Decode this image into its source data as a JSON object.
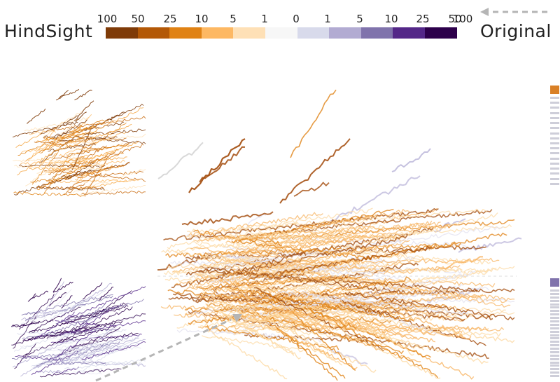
{
  "legend": {
    "left_label": "HindSight",
    "right_label": "Original",
    "ticks": [
      "100",
      "50",
      "25",
      "10",
      "5",
      "1",
      "0",
      "1",
      "5",
      "10",
      "25",
      "50",
      "100"
    ],
    "colors": [
      "#7f3b08",
      "#b35806",
      "#e08214",
      "#fdb863",
      "#fee0b6",
      "#f7f7f7",
      "#d8daeb",
      "#b2abd2",
      "#8073ac",
      "#542788",
      "#2d004b"
    ]
  },
  "palette": {
    "orange_light": "#fcd9a4",
    "orange_mid": "#f7b463",
    "orange_dark": "#e08214",
    "brown": "#a24a0a",
    "lavender_light": "#e1e0ef",
    "lavender_mid": "#b7b1d7",
    "purple_dark": "#3b1f7a",
    "grey": "#c8c8c8"
  },
  "icons": {
    "arrow_top": "dashed-arrow-left-icon",
    "arrow_main": "dashed-arrow-diagonal-icon"
  }
}
